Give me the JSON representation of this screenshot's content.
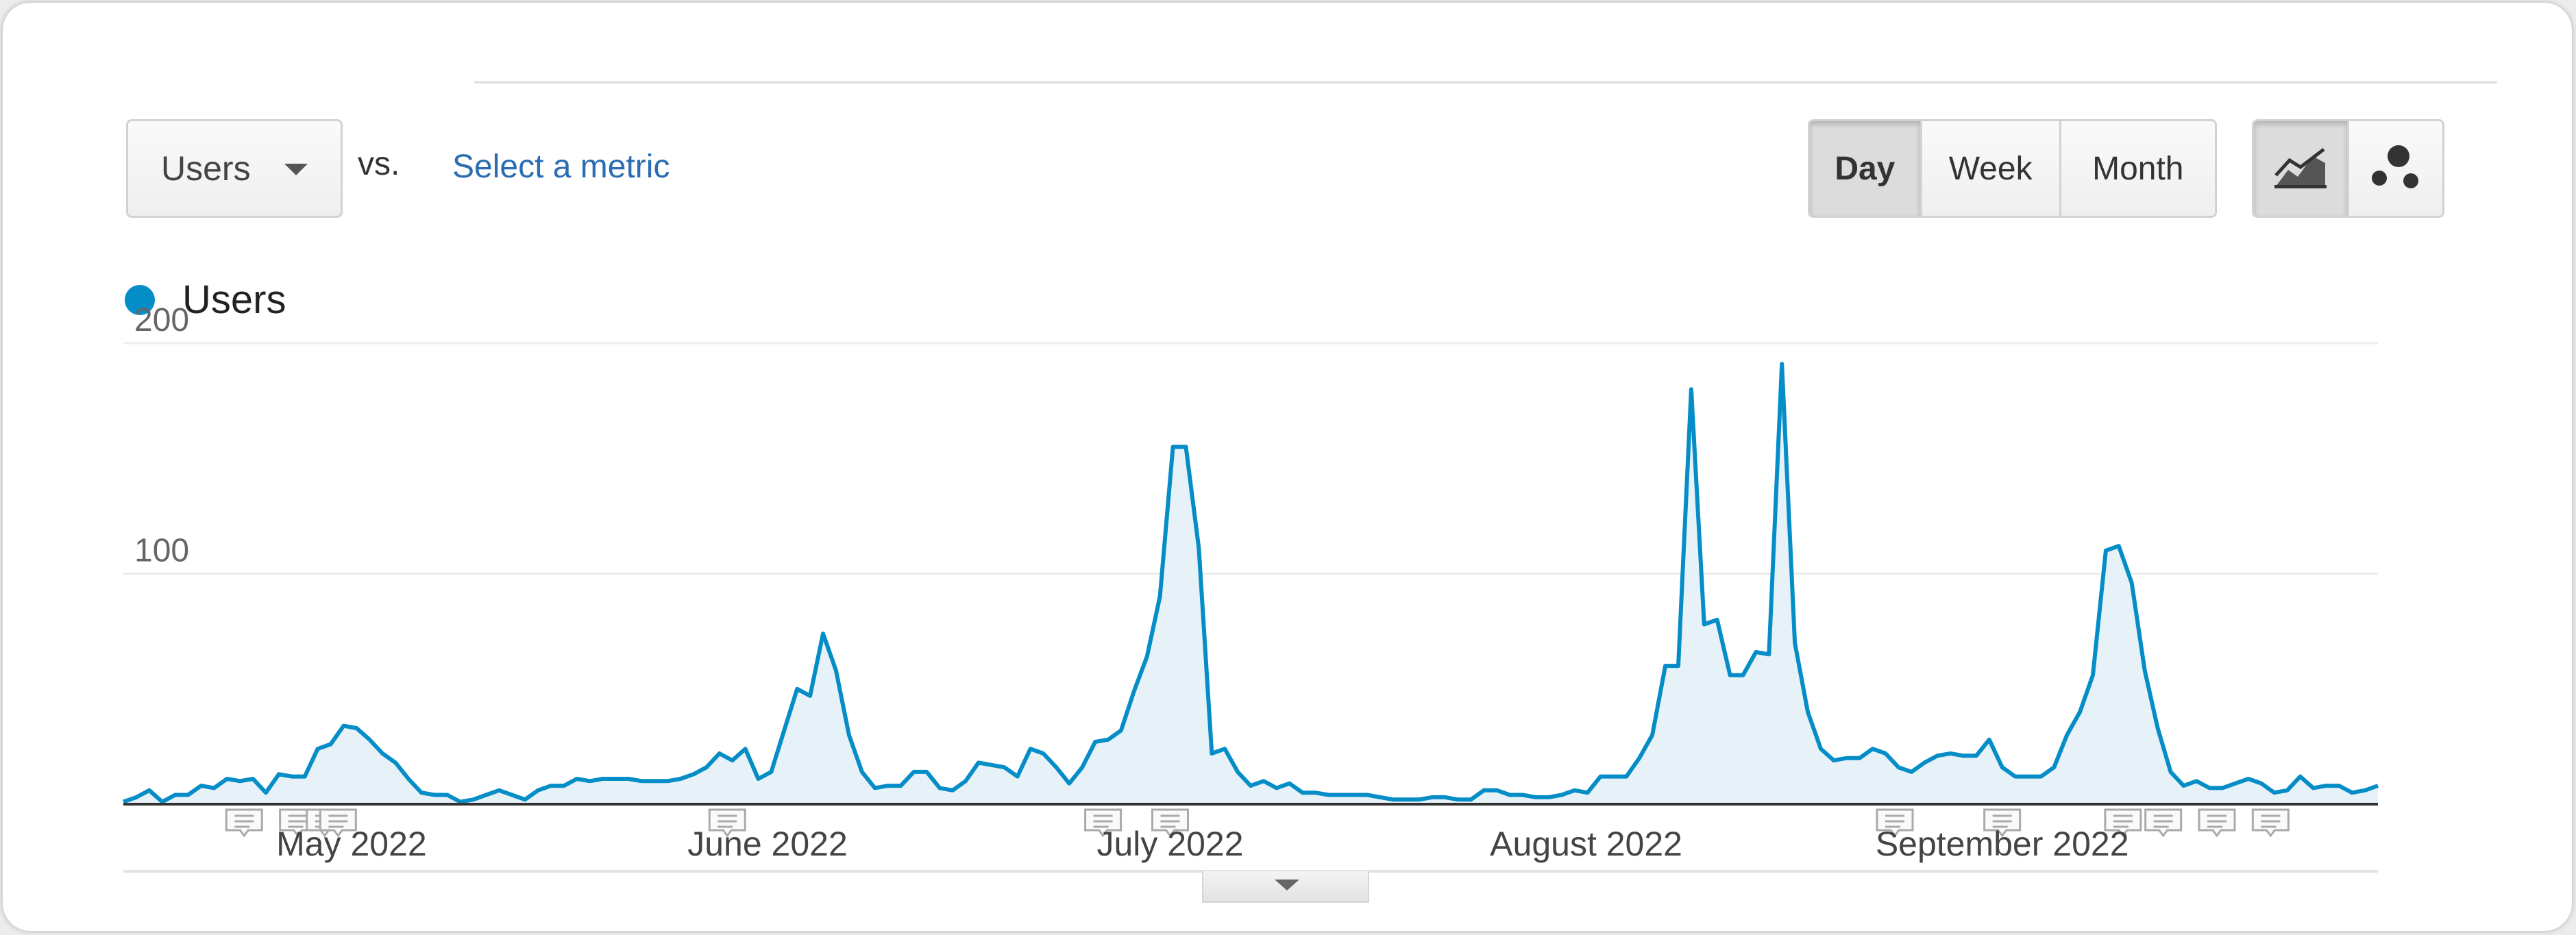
{
  "toolbar": {
    "metric": "Users",
    "vs": "vs.",
    "select_metric": "Select a metric",
    "granularity": [
      {
        "label": "Day",
        "active": true
      },
      {
        "label": "Week",
        "active": false
      },
      {
        "label": "Month",
        "active": false
      }
    ],
    "chart_modes": [
      {
        "icon": "line-chart-icon",
        "active": true
      },
      {
        "icon": "motion-chart-icon",
        "active": false
      }
    ]
  },
  "legend": {
    "label": "Users",
    "color": "#058dc7"
  },
  "chart_data": {
    "type": "area",
    "x_start": "2022-04-14",
    "x_end": "2022-09-29",
    "xlabel": "",
    "ylabel": "",
    "ylim": [
      0,
      200
    ],
    "yticks": [
      100,
      200
    ],
    "xticks": [
      "2022-05-01",
      "2022-06-01",
      "2022-07-01",
      "2022-08-01",
      "2022-09-01"
    ],
    "xtick_labels": [
      "May 2022",
      "June 2022",
      "July 2022",
      "August 2022",
      "September 2022"
    ],
    "series": [
      {
        "name": "Users",
        "color": "#058dc7",
        "values": [
          1,
          3,
          6,
          1,
          4,
          4,
          8,
          7,
          11,
          10,
          11,
          5,
          13,
          12,
          12,
          24,
          26,
          34,
          33,
          28,
          22,
          18,
          11,
          5,
          4,
          4,
          1,
          2,
          4,
          6,
          4,
          2,
          6,
          8,
          8,
          11,
          10,
          11,
          11,
          11,
          10,
          10,
          10,
          11,
          13,
          16,
          22,
          19,
          24,
          11,
          14,
          32,
          50,
          47,
          74,
          58,
          30,
          14,
          7,
          8,
          8,
          14,
          14,
          7,
          6,
          10,
          18,
          17,
          16,
          12,
          24,
          22,
          16,
          9,
          16,
          27,
          28,
          32,
          49,
          64,
          90,
          155,
          155,
          111,
          22,
          24,
          14,
          8,
          10,
          7,
          9,
          5,
          5,
          4,
          4,
          4,
          4,
          3,
          2,
          2,
          2,
          3,
          3,
          2,
          2,
          6,
          6,
          4,
          4,
          3,
          3,
          4,
          6,
          5,
          12,
          12,
          12,
          20,
          30,
          60,
          60,
          180,
          78,
          80,
          56,
          56,
          66,
          65,
          191,
          70,
          40,
          24,
          19,
          20,
          20,
          24,
          22,
          16,
          14,
          18,
          21,
          22,
          21,
          21,
          28,
          16,
          12,
          12,
          12,
          16,
          30,
          40,
          56,
          110,
          112,
          96,
          58,
          33,
          14,
          8,
          10,
          7,
          7,
          9,
          11,
          9,
          5,
          6,
          12,
          7,
          8,
          8,
          5,
          6,
          8
        ],
        "annotations": [
          "2022-04-23",
          "2022-04-27",
          "2022-04-29",
          "2022-04-30",
          "2022-05-29",
          "2022-06-26",
          "2022-07-01",
          "2022-08-24",
          "2022-09-01",
          "2022-09-10",
          "2022-09-13",
          "2022-09-17",
          "2022-09-21"
        ]
      }
    ]
  }
}
